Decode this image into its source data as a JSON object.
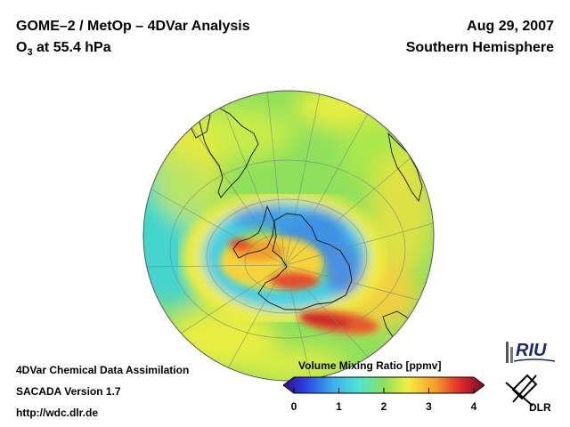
{
  "header": {
    "title": "GOME–2 / MetOp – 4DVar Analysis",
    "subtitle_prefix": "O",
    "subtitle_sub": "3",
    "subtitle_rest": " at 55.4 hPa",
    "date": "Aug 29, 2007",
    "region": "Southern Hemisphere"
  },
  "footer": {
    "line1": "4DVar Chemical Data Assimilation",
    "line2": "SACADA Version 1.7",
    "line3": "http://wdc.dlr.de"
  },
  "legend": {
    "title": "Volume Mixing Ratio [ppmv]",
    "ticks": [
      "0",
      "1",
      "2",
      "3",
      "4"
    ],
    "min": 0,
    "max": 4
  },
  "logos": {
    "riu": "RIU",
    "dlr": "DLR"
  },
  "colors": {
    "low": "#3c0a82",
    "blue": "#3aa0e8",
    "cyan": "#4fd8e8",
    "green": "#8ce05a",
    "yellow": "#f4ee3c",
    "orange": "#f6a22a",
    "red": "#e83a2a",
    "high": "#7a0a2a"
  }
}
